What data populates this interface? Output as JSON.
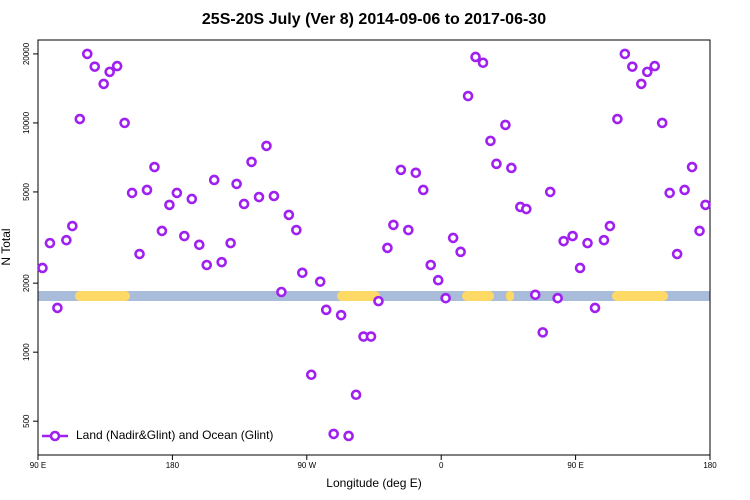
{
  "chart_data": {
    "type": "scatter",
    "title": "25S-20S July (Ver 8)   2014-09-06 to 2017-06-30",
    "x_label": "Longitude (deg E)",
    "y_label": "N Total",
    "log_y": true,
    "legend": "lower left",
    "xlim": [
      90,
      540
    ],
    "xticks": [
      {
        "value": 90,
        "label": "90 E"
      },
      {
        "value": 180,
        "label": "180"
      },
      {
        "value": 270,
        "label": "90 W"
      },
      {
        "value": 360,
        "label": "0"
      },
      {
        "value": 450,
        "label": "90 E"
      },
      {
        "value": 540,
        "label": "180"
      }
    ],
    "ylim": [
      356,
      23000
    ],
    "yticks": [
      500,
      1000,
      2000,
      5000,
      10000,
      20000
    ],
    "x": [
      93,
      98,
      103,
      109,
      113,
      118,
      123,
      128,
      134,
      138,
      143,
      148,
      153,
      158,
      163,
      168,
      173,
      178,
      183,
      188,
      193,
      198,
      203,
      208,
      213,
      219,
      223,
      228,
      233,
      238,
      243,
      248,
      253,
      258,
      263,
      267,
      273,
      279,
      283,
      288,
      293,
      298,
      303,
      308,
      313,
      318,
      324,
      328,
      333,
      338,
      343,
      348,
      353,
      358,
      363,
      368,
      373,
      378,
      383,
      388,
      393,
      397,
      403,
      407,
      413,
      417,
      423,
      428,
      433,
      438,
      442,
      448,
      453,
      458,
      463,
      469,
      473,
      478,
      483,
      488,
      494,
      498,
      503,
      508,
      513,
      518,
      523,
      528,
      533,
      537
    ],
    "series": [
      {
        "name": "Land (Nadir&Glint) and Ocean (Glint)",
        "color": "#a020f0",
        "values": [
          2330,
          2990,
          1560,
          3080,
          3550,
          10400,
          20000,
          17600,
          14800,
          16700,
          17700,
          10000,
          4950,
          2680,
          5100,
          6420,
          3380,
          4390,
          4950,
          3210,
          4660,
          2940,
          2400,
          5640,
          2470,
          2990,
          5420,
          4430,
          6760,
          4750,
          7940,
          4800,
          1830,
          3970,
          3410,
          2220,
          797,
          2030,
          1530,
          440,
          1450,
          431,
          652,
          1170,
          1170,
          1670,
          2850,
          3590,
          6240,
          3410,
          6060,
          5100,
          2400,
          2060,
          1720,
          3150,
          2740,
          13100,
          19400,
          18300,
          8350,
          6630,
          9800,
          6360,
          4300,
          4210,
          1780,
          1220,
          5000,
          1720,
          3050,
          3210,
          2330,
          2990,
          1560,
          3080,
          3550,
          10400,
          20000,
          17600,
          14800,
          16700,
          17700,
          10000,
          4950,
          2680,
          5100,
          6420,
          3380,
          4390
        ]
      }
    ]
  }
}
